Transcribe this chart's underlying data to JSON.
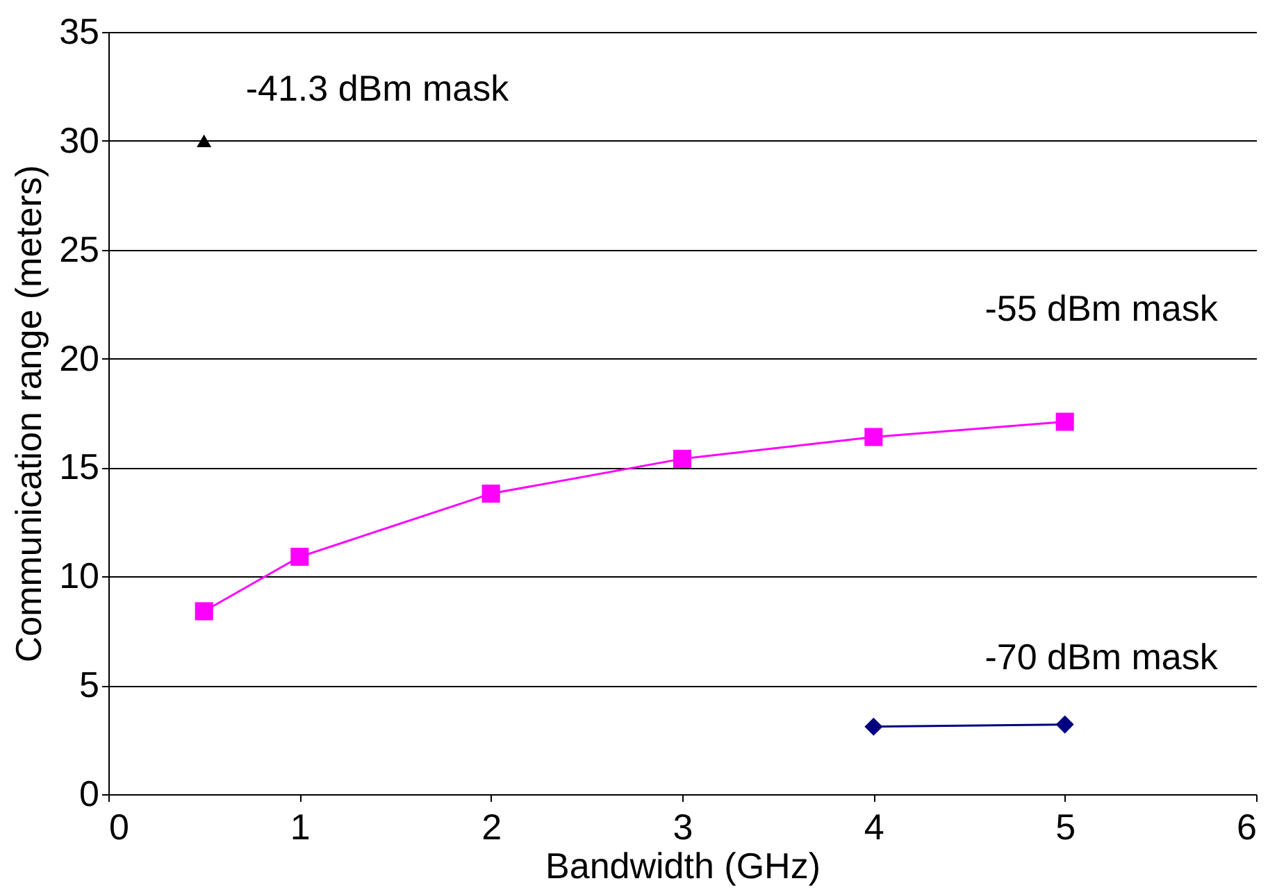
{
  "chart_data": {
    "type": "line",
    "xlabel": "Bandwidth (GHz)",
    "ylabel": "Communication range (meters)",
    "xlim": [
      0,
      6
    ],
    "xticks": [
      {
        "value": 0,
        "label": "0"
      },
      {
        "value": 1,
        "label": "1"
      },
      {
        "value": 2,
        "label": "2"
      },
      {
        "value": 3,
        "label": "3"
      },
      {
        "value": 4,
        "label": "4"
      },
      {
        "value": 5,
        "label": "5"
      },
      {
        "value": 6,
        "label": "6"
      }
    ],
    "ylim": [
      0,
      35
    ],
    "yticks": [
      0,
      5,
      10,
      15,
      20,
      25,
      30,
      35
    ],
    "grid": "y",
    "line_style": "solid",
    "series": [
      {
        "name": "-41.3 dBm mask",
        "color": "#000000",
        "type": "scatter",
        "marker": "triangle",
        "x": [
          0.5
        ],
        "values": [
          30
        ]
      },
      {
        "name": "-55 dBm mask",
        "color": "#ff00ff",
        "marker": "square",
        "x": [
          0.5,
          1,
          2,
          3,
          4,
          5
        ],
        "values": [
          8.4,
          10.9,
          13.8,
          15.4,
          16.4,
          17.1
        ]
      },
      {
        "name": "-70 dBm mask",
        "color": "#000080",
        "marker": "diamond",
        "x": [
          4,
          5
        ],
        "values": [
          3.1,
          3.2
        ]
      }
    ]
  }
}
